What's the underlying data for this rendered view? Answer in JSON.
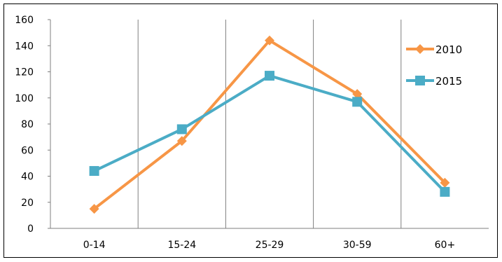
{
  "chart_data": {
    "type": "line",
    "categories": [
      "0-14",
      "15-24",
      "25-29",
      "30-59",
      "60+"
    ],
    "series": [
      {
        "name": "2010",
        "values": [
          15,
          67,
          144,
          103,
          35
        ],
        "color": "#F79646",
        "marker": "diamond"
      },
      {
        "name": "2015",
        "values": [
          44,
          76,
          117,
          97,
          28
        ],
        "color": "#4BACC6",
        "marker": "square"
      }
    ],
    "ylim": [
      0,
      160
    ],
    "yticks": [
      "0",
      "20",
      "40",
      "60",
      "80",
      "100",
      "120",
      "140",
      "160"
    ],
    "grid": "vertical",
    "legend": "right"
  }
}
